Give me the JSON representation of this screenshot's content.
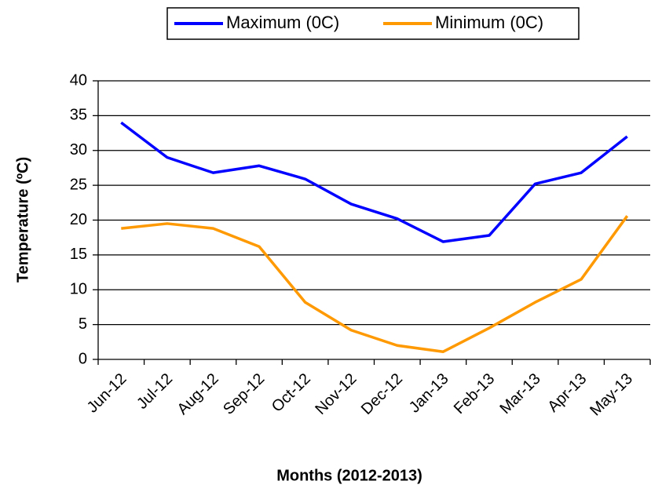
{
  "chart_data": {
    "type": "line",
    "categories": [
      "Jun-12",
      "Jul-12",
      "Aug-12",
      "Sep-12",
      "Oct-12",
      "Nov-12",
      "Dec-12",
      "Jan-13",
      "Feb-13",
      "Mar-13",
      "Apr-13",
      "May-13"
    ],
    "series": [
      {
        "name": "Maximum (0C)",
        "color": "#0000ff",
        "values": [
          34,
          29,
          26.8,
          27.8,
          25.9,
          22.3,
          20.2,
          16.9,
          17.8,
          25.2,
          26.8,
          32
        ]
      },
      {
        "name": "Minimum (0C)",
        "color": "#ff9900",
        "values": [
          18.8,
          19.5,
          18.8,
          16.2,
          8.2,
          4.2,
          2.0,
          1.1,
          4.5,
          8.2,
          11.5,
          20.6
        ]
      }
    ],
    "ylim": [
      0,
      40
    ],
    "yticks": [
      0,
      5,
      10,
      15,
      20,
      25,
      30,
      35,
      40
    ],
    "ylabel": "Temperature (ºC)",
    "xlabel": "Months (2012-2013)",
    "grid": true,
    "legend": "top"
  }
}
